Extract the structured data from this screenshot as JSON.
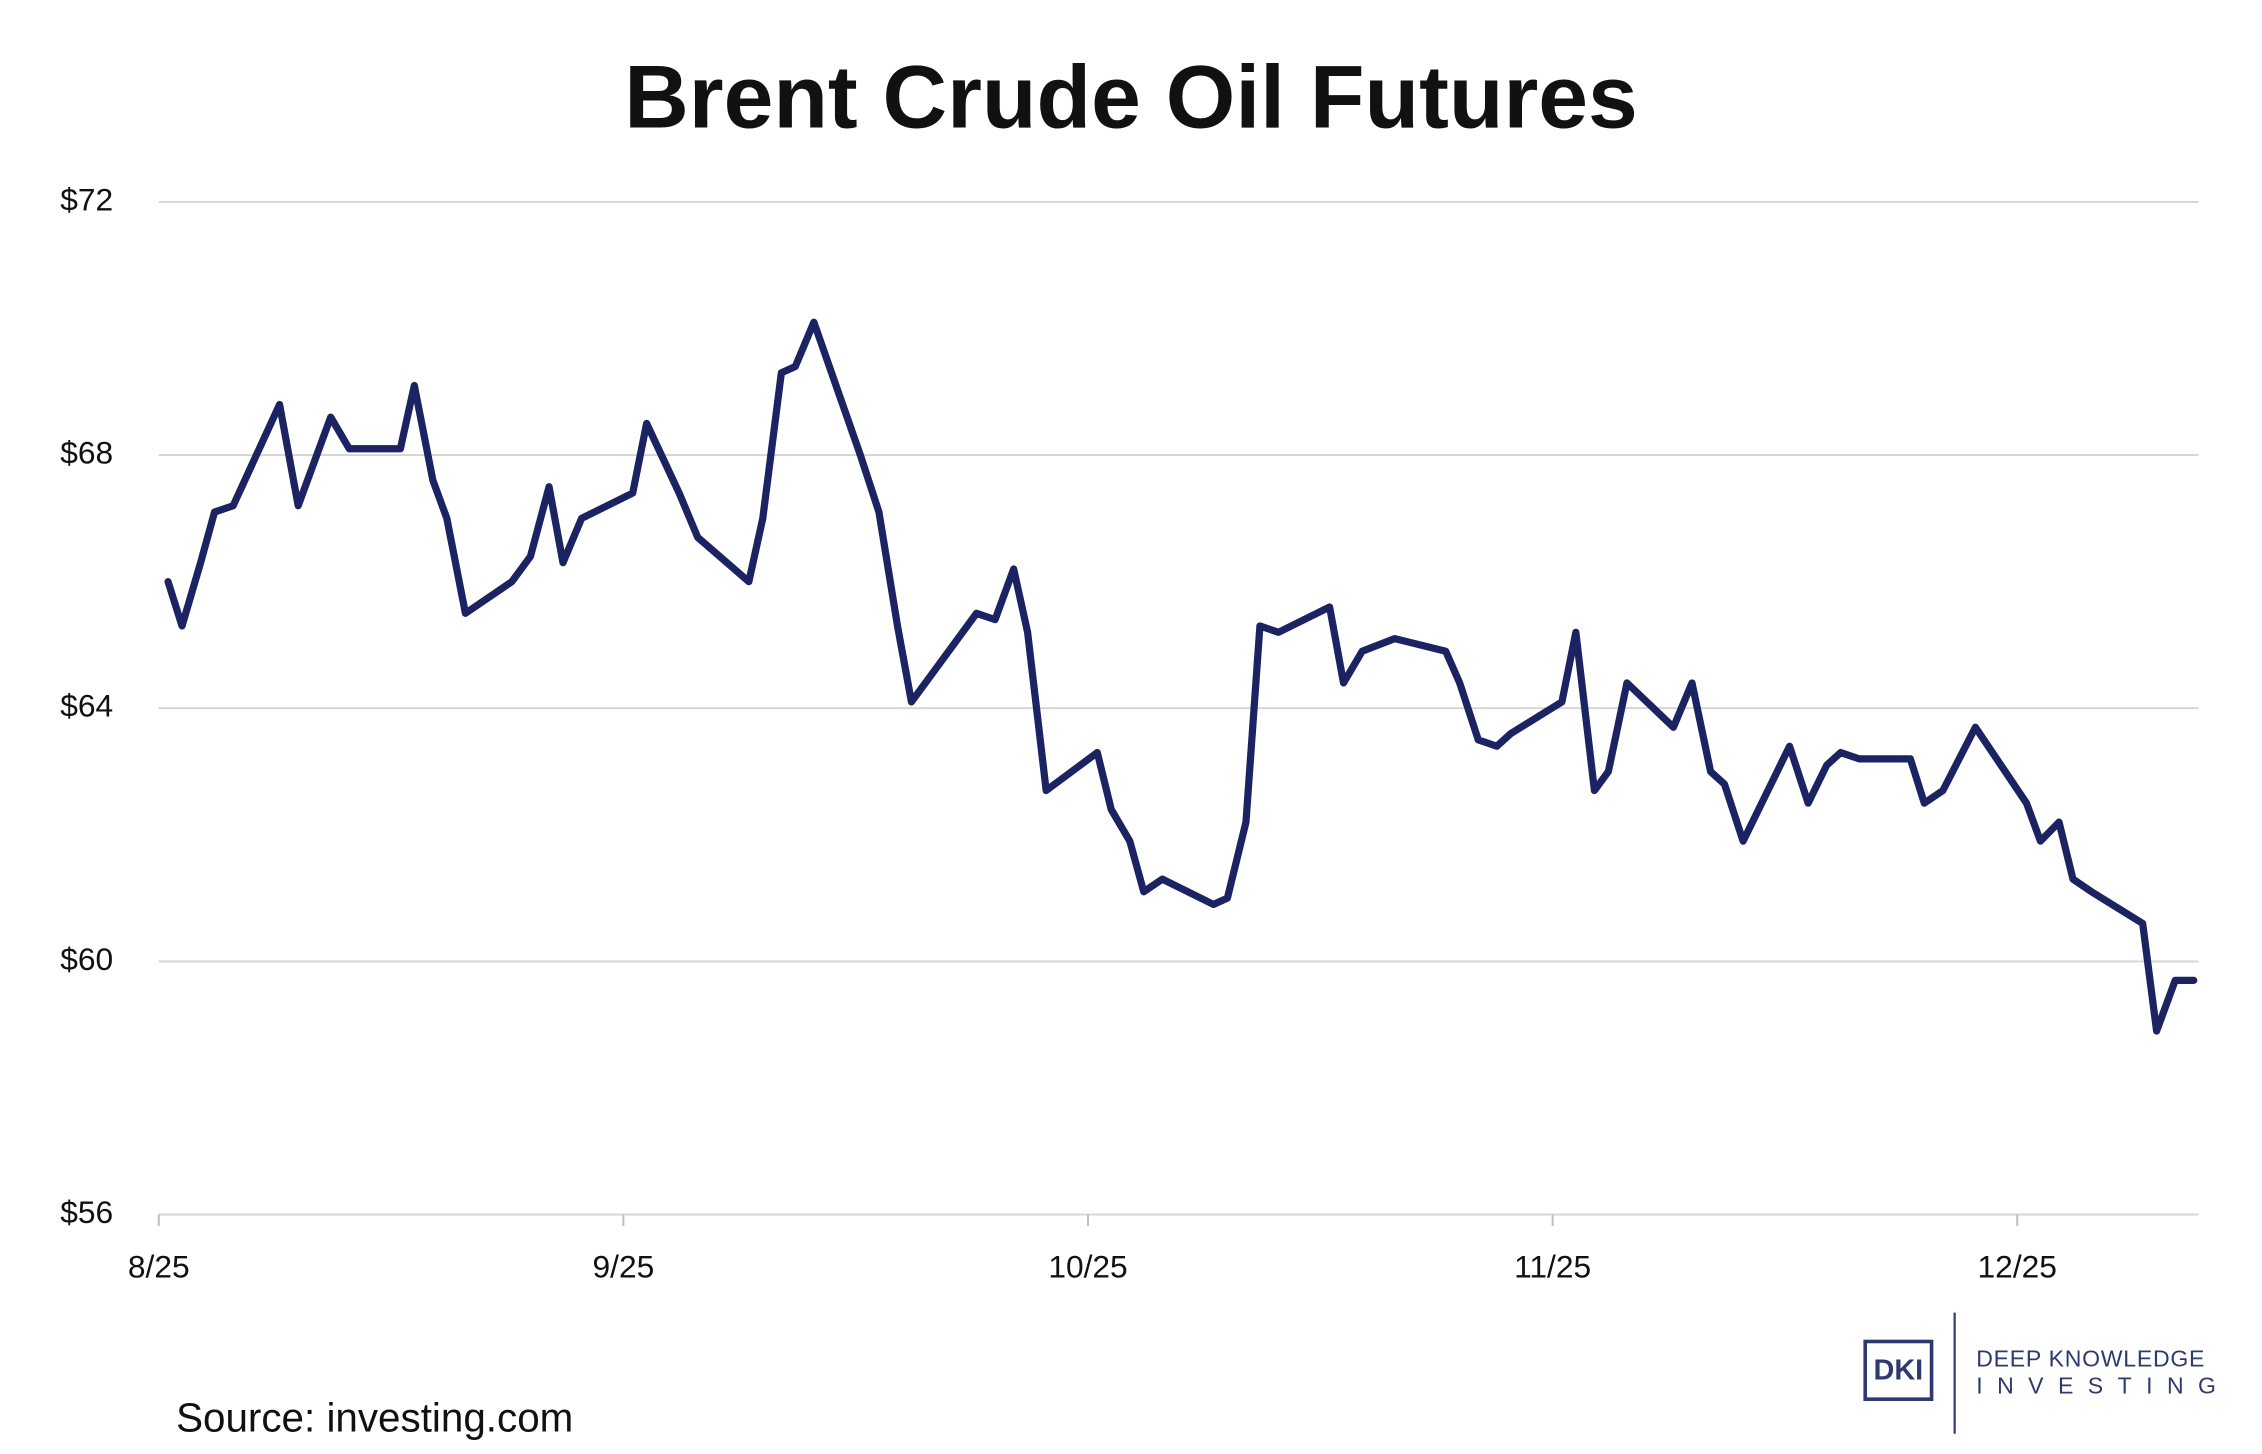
{
  "chart_data": {
    "type": "line",
    "title": "Brent Crude Oil Futures",
    "source": "Source: investing.com",
    "logo": {
      "mark": "DKI",
      "line1": "DEEP KNOWLEDGE",
      "line2": "INVESTING"
    },
    "x": [
      0.02,
      0.05,
      0.09,
      0.12,
      0.16,
      0.26,
      0.3,
      0.34,
      0.37,
      0.41,
      0.52,
      0.55,
      0.59,
      0.62,
      0.66,
      0.76,
      0.8,
      0.84,
      0.87,
      0.91,
      1.02,
      1.05,
      1.12,
      1.16,
      1.27,
      1.3,
      1.34,
      1.37,
      1.41,
      1.51,
      1.55,
      1.59,
      1.62,
      1.66,
      1.76,
      1.8,
      1.84,
      1.87,
      1.91,
      2.02,
      2.05,
      2.09,
      2.12,
      2.16,
      2.27,
      2.3,
      2.34,
      2.37,
      2.41,
      2.52,
      2.55,
      2.59,
      2.66,
      2.77,
      2.8,
      2.84,
      2.88,
      2.91,
      3.02,
      3.05,
      3.09,
      3.12,
      3.16,
      3.26,
      3.3,
      3.34,
      3.37,
      3.41,
      3.51,
      3.55,
      3.59,
      3.62,
      3.66,
      3.77,
      3.8,
      3.84,
      3.91,
      4.02,
      4.05,
      4.09,
      4.12,
      4.16,
      4.27,
      4.3,
      4.34,
      4.38
    ],
    "series": [
      {
        "name": "Brent Crude Oil Futures",
        "color": "#1b2363",
        "values": [
          66.0,
          65.3,
          66.3,
          67.1,
          67.2,
          68.8,
          67.2,
          68.0,
          68.6,
          68.1,
          68.1,
          69.1,
          67.6,
          67.0,
          65.5,
          66.0,
          66.4,
          67.5,
          66.3,
          67.0,
          67.4,
          68.5,
          67.4,
          66.7,
          66.0,
          67.0,
          69.3,
          69.4,
          70.1,
          68.0,
          67.1,
          65.3,
          64.1,
          64.5,
          65.5,
          65.4,
          66.2,
          65.2,
          62.7,
          63.3,
          62.4,
          61.9,
          61.1,
          61.3,
          60.9,
          61.0,
          62.2,
          65.3,
          65.2,
          65.6,
          64.4,
          64.9,
          65.1,
          64.9,
          64.4,
          63.5,
          63.4,
          63.6,
          64.1,
          65.2,
          62.7,
          63.0,
          64.4,
          63.7,
          64.4,
          63.0,
          62.8,
          61.9,
          63.4,
          62.5,
          63.1,
          63.3,
          63.2,
          63.2,
          62.5,
          62.7,
          63.7,
          62.5,
          61.9,
          62.2,
          61.3,
          61.1,
          60.6,
          58.9,
          59.7,
          59.7
        ]
      }
    ],
    "xlim": [
      0,
      4.39
    ],
    "xticks": [
      {
        "value": 0,
        "label": "8/25"
      },
      {
        "value": 1,
        "label": "9/25"
      },
      {
        "value": 2,
        "label": "10/25"
      },
      {
        "value": 3,
        "label": "11/25"
      },
      {
        "value": 4,
        "label": "12/25"
      }
    ],
    "ylim": [
      56,
      72
    ],
    "yticks": [
      {
        "value": 56,
        "label": "$56"
      },
      {
        "value": 60,
        "label": "$60"
      },
      {
        "value": 64,
        "label": "$64"
      },
      {
        "value": 68,
        "label": "$68"
      },
      {
        "value": 72,
        "label": "$72"
      }
    ],
    "grid": true
  }
}
